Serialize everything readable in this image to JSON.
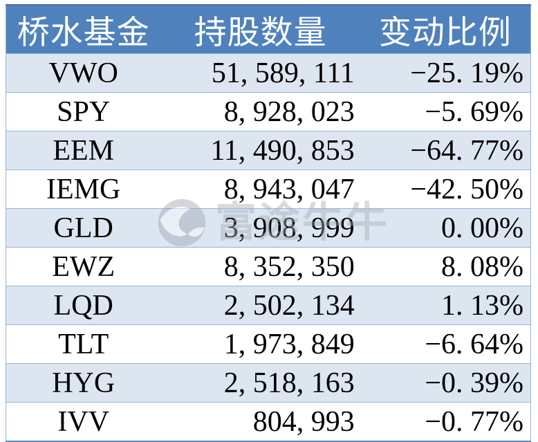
{
  "colors": {
    "header_bg": "#4F81BD",
    "header_text": "#FFFFFF",
    "row_band": "#DCE6F1",
    "row_plain": "#FFFFFF",
    "grid_line": "#95B3D7",
    "cell_text": "#000000",
    "watermark_gray": "#D5D9DF"
  },
  "watermark": {
    "text": "富途牛牛",
    "logo_icon": "futu-niuniu-swirl-logo"
  },
  "table": {
    "headers": [
      "桥水基金",
      "持股数量",
      "变动比例"
    ],
    "rows": [
      {
        "fund": "VWO",
        "shares": "51, 589, 111",
        "change": "−25. 19%"
      },
      {
        "fund": "SPY",
        "shares": "8, 928, 023",
        "change": "−5. 69%"
      },
      {
        "fund": "EEM",
        "shares": "11, 490, 853",
        "change": "−64. 77%"
      },
      {
        "fund": "IEMG",
        "shares": "8, 943, 047",
        "change": "−42. 50%"
      },
      {
        "fund": "GLD",
        "shares": "3, 908, 999",
        "change": "0. 00%"
      },
      {
        "fund": "EWZ",
        "shares": "8, 352, 350",
        "change": "8. 08%"
      },
      {
        "fund": "LQD",
        "shares": "2, 502, 134",
        "change": "1. 13%"
      },
      {
        "fund": "TLT",
        "shares": "1, 973, 849",
        "change": "−6. 64%"
      },
      {
        "fund": "HYG",
        "shares": "2, 518, 163",
        "change": "−0. 39%"
      },
      {
        "fund": "IVV",
        "shares": "804, 993",
        "change": "−0. 77%"
      }
    ]
  },
  "chart_data": {
    "type": "table",
    "title": "桥水基金持仓变动",
    "columns": [
      "桥水基金",
      "持股数量",
      "变动比例(%)"
    ],
    "rows": [
      [
        "VWO",
        51589111,
        -25.19
      ],
      [
        "SPY",
        8928023,
        -5.69
      ],
      [
        "EEM",
        11490853,
        -64.77
      ],
      [
        "IEMG",
        8943047,
        -42.5
      ],
      [
        "GLD",
        3908999,
        0.0
      ],
      [
        "EWZ",
        8352350,
        8.08
      ],
      [
        "LQD",
        2502134,
        1.13
      ],
      [
        "TLT",
        1973849,
        -6.64
      ],
      [
        "HYG",
        2518163,
        -0.39
      ],
      [
        "IVV",
        804993,
        -0.77
      ]
    ],
    "layout": {
      "banded_rows": true,
      "header_fill": "#4F81BD",
      "band_fill": "#DCE6F1"
    }
  }
}
